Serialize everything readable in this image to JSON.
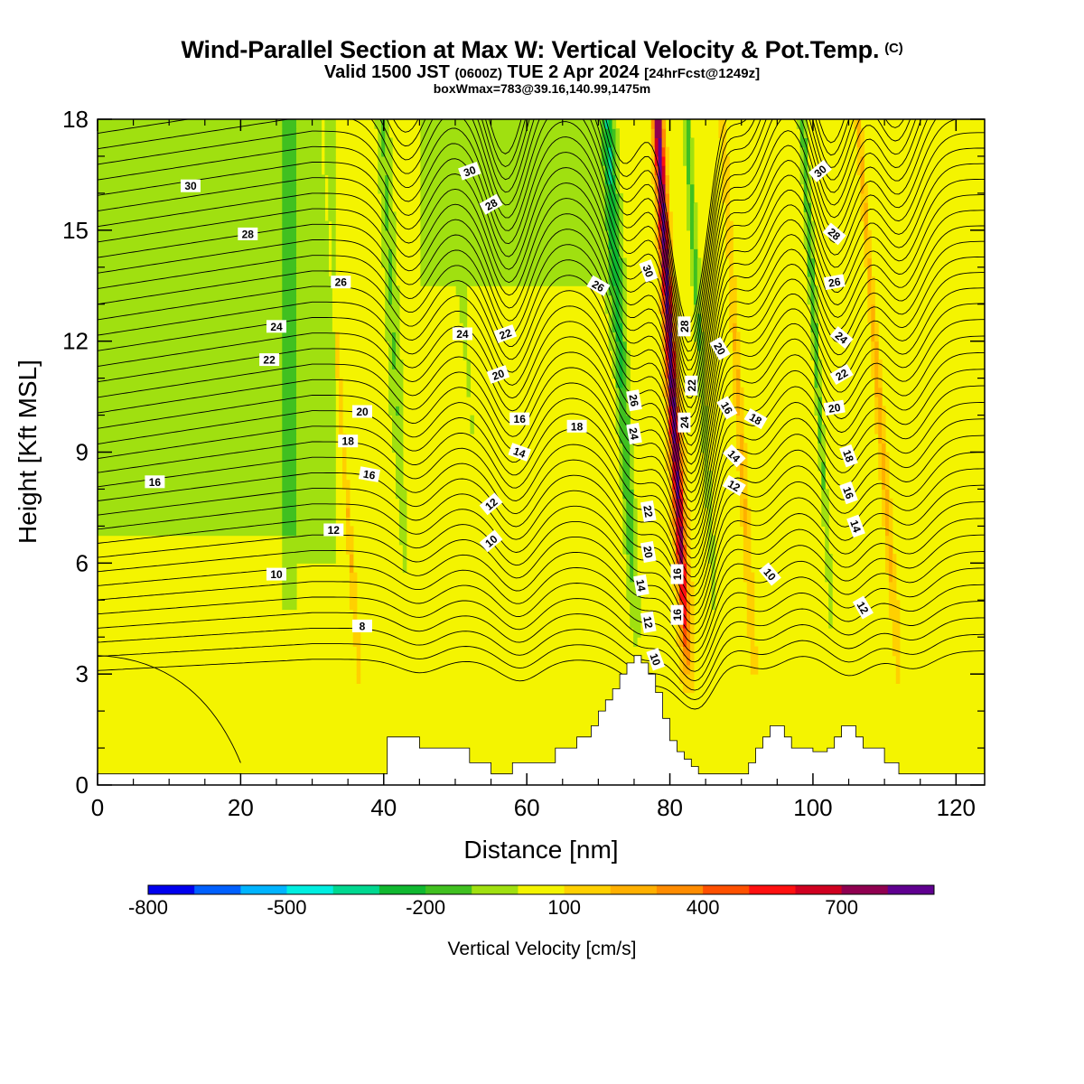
{
  "title": {
    "main": "Wind-Parallel Section at Max W: Vertical Velocity & Pot.Temp.",
    "copyright": "(C)",
    "valid_prefix": "Valid 1500 JST",
    "valid_utc": "(0600Z)",
    "valid_date": "TUE 2 Apr 2024",
    "valid_forecast": "[24hrFcst@1249z]",
    "box_info": "boxWmax=783@39.16,140.99,1475m"
  },
  "chart_data": {
    "type": "heatmap",
    "xlabel": "Distance [nm]",
    "ylabel": "Height [Kft MSL]",
    "xlim": [
      0,
      124
    ],
    "ylim": [
      0,
      18
    ],
    "x_ticks": [
      "0",
      "20",
      "40",
      "60",
      "80",
      "100",
      "120"
    ],
    "y_ticks": [
      "0",
      "3",
      "6",
      "9",
      "12",
      "15",
      "18"
    ],
    "colorbar": {
      "title": "Vertical Velocity [cm/s]",
      "tick_labels": [
        "-800",
        "-500",
        "-200",
        "100",
        "400",
        "700"
      ],
      "colors": [
        "#0000ee",
        "#0060ff",
        "#00b4ff",
        "#00eee0",
        "#00d890",
        "#10b830",
        "#40c020",
        "#a0e010",
        "#f4f400",
        "#ffd000",
        "#ffb000",
        "#ff8c00",
        "#ff5000",
        "#ff1010",
        "#d00020",
        "#900050",
        "#600090"
      ]
    },
    "shaded_field": "Vertical Velocity [cm/s]",
    "contour_field": "Pot.Temp.",
    "contour_labels": [
      "30",
      "28",
      "26",
      "24",
      "22",
      "20",
      "18",
      "16",
      "14",
      "12",
      "10",
      "8"
    ],
    "w_peak": {
      "distance_nm": 82.5,
      "height_kft_range": [
        3.0,
        18.0
      ],
      "value_cms": 783
    },
    "terrain_profile": {
      "x": [
        0,
        40,
        40.5,
        44.5,
        45,
        48,
        52,
        55,
        58,
        60,
        64,
        67,
        69,
        70,
        71,
        72,
        73,
        74,
        75,
        76,
        77,
        78,
        79,
        80,
        81,
        82,
        83,
        84,
        85,
        86,
        88,
        90,
        91,
        92,
        93,
        94,
        95,
        96,
        97,
        98,
        100,
        102,
        103,
        104,
        105,
        106,
        107,
        108,
        110,
        112,
        124
      ],
      "y": [
        0.3,
        0.3,
        1.3,
        1.3,
        1.0,
        1.0,
        0.6,
        0.3,
        0.6,
        0.6,
        1.0,
        1.3,
        1.6,
        2.0,
        2.3,
        2.6,
        3.0,
        3.3,
        3.5,
        3.3,
        3.0,
        2.5,
        1.8,
        1.2,
        0.9,
        0.7,
        0.5,
        0.3,
        0.3,
        0.3,
        0.3,
        0.3,
        0.6,
        1.0,
        1.3,
        1.6,
        1.6,
        1.3,
        1.0,
        1.0,
        0.9,
        1.0,
        1.3,
        1.6,
        1.6,
        1.3,
        1.0,
        1.0,
        0.6,
        0.3,
        0.3
      ]
    }
  }
}
